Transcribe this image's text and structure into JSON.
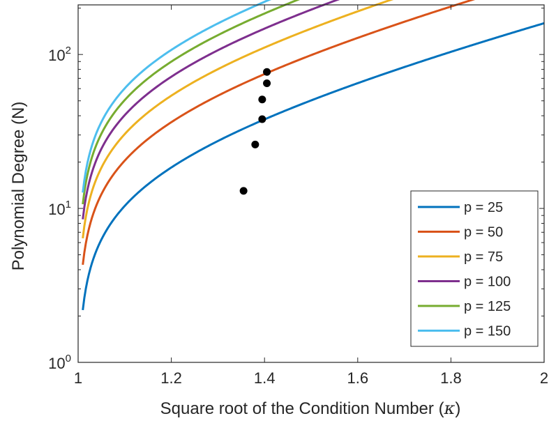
{
  "chart_data": {
    "type": "line",
    "xlabel": "Square root of the Condition Number (",
    "xlabel_symbol": "κ",
    "xlabel_close": ")",
    "ylabel": "Polynomial Degree (N)",
    "xlim": [
      1,
      2
    ],
    "ylim": [
      1,
      210
    ],
    "yscale": "log",
    "grid": false,
    "legend_position": "bottom-right",
    "x_ticks": [
      {
        "value": 1,
        "label": "1"
      },
      {
        "value": 1.2,
        "label": "1.2"
      },
      {
        "value": 1.4,
        "label": "1.4"
      },
      {
        "value": 1.6,
        "label": "1.6"
      },
      {
        "value": 1.8,
        "label": "1.8"
      },
      {
        "value": 2,
        "label": "2"
      }
    ],
    "y_ticks": [
      {
        "value": 1,
        "base": "10",
        "exp": "0"
      },
      {
        "value": 10,
        "base": "10",
        "exp": "1"
      },
      {
        "value": 100,
        "base": "10",
        "exp": "2"
      }
    ],
    "series": [
      {
        "name": "p = 25",
        "color": "#0072BD",
        "scale": 0.193,
        "marker": {
          "x": 1.355,
          "y": 13
        }
      },
      {
        "name": "p = 50",
        "color": "#D95319",
        "scale": 0.38,
        "marker": {
          "x": 1.38,
          "y": 26
        }
      },
      {
        "name": "p = 75",
        "color": "#EDB120",
        "scale": 0.565,
        "marker": {
          "x": 1.395,
          "y": 38
        }
      },
      {
        "name": "p = 100",
        "color": "#7E2F8E",
        "scale": 0.75,
        "marker": {
          "x": 1.395,
          "y": 51
        }
      },
      {
        "name": "p = 125",
        "color": "#77AC30",
        "scale": 0.94,
        "marker": {
          "x": 1.405,
          "y": 65
        }
      },
      {
        "name": "p = 150",
        "color": "#4DBEEE",
        "scale": 1.12,
        "marker": {
          "x": 1.405,
          "y": 77
        }
      }
    ]
  }
}
